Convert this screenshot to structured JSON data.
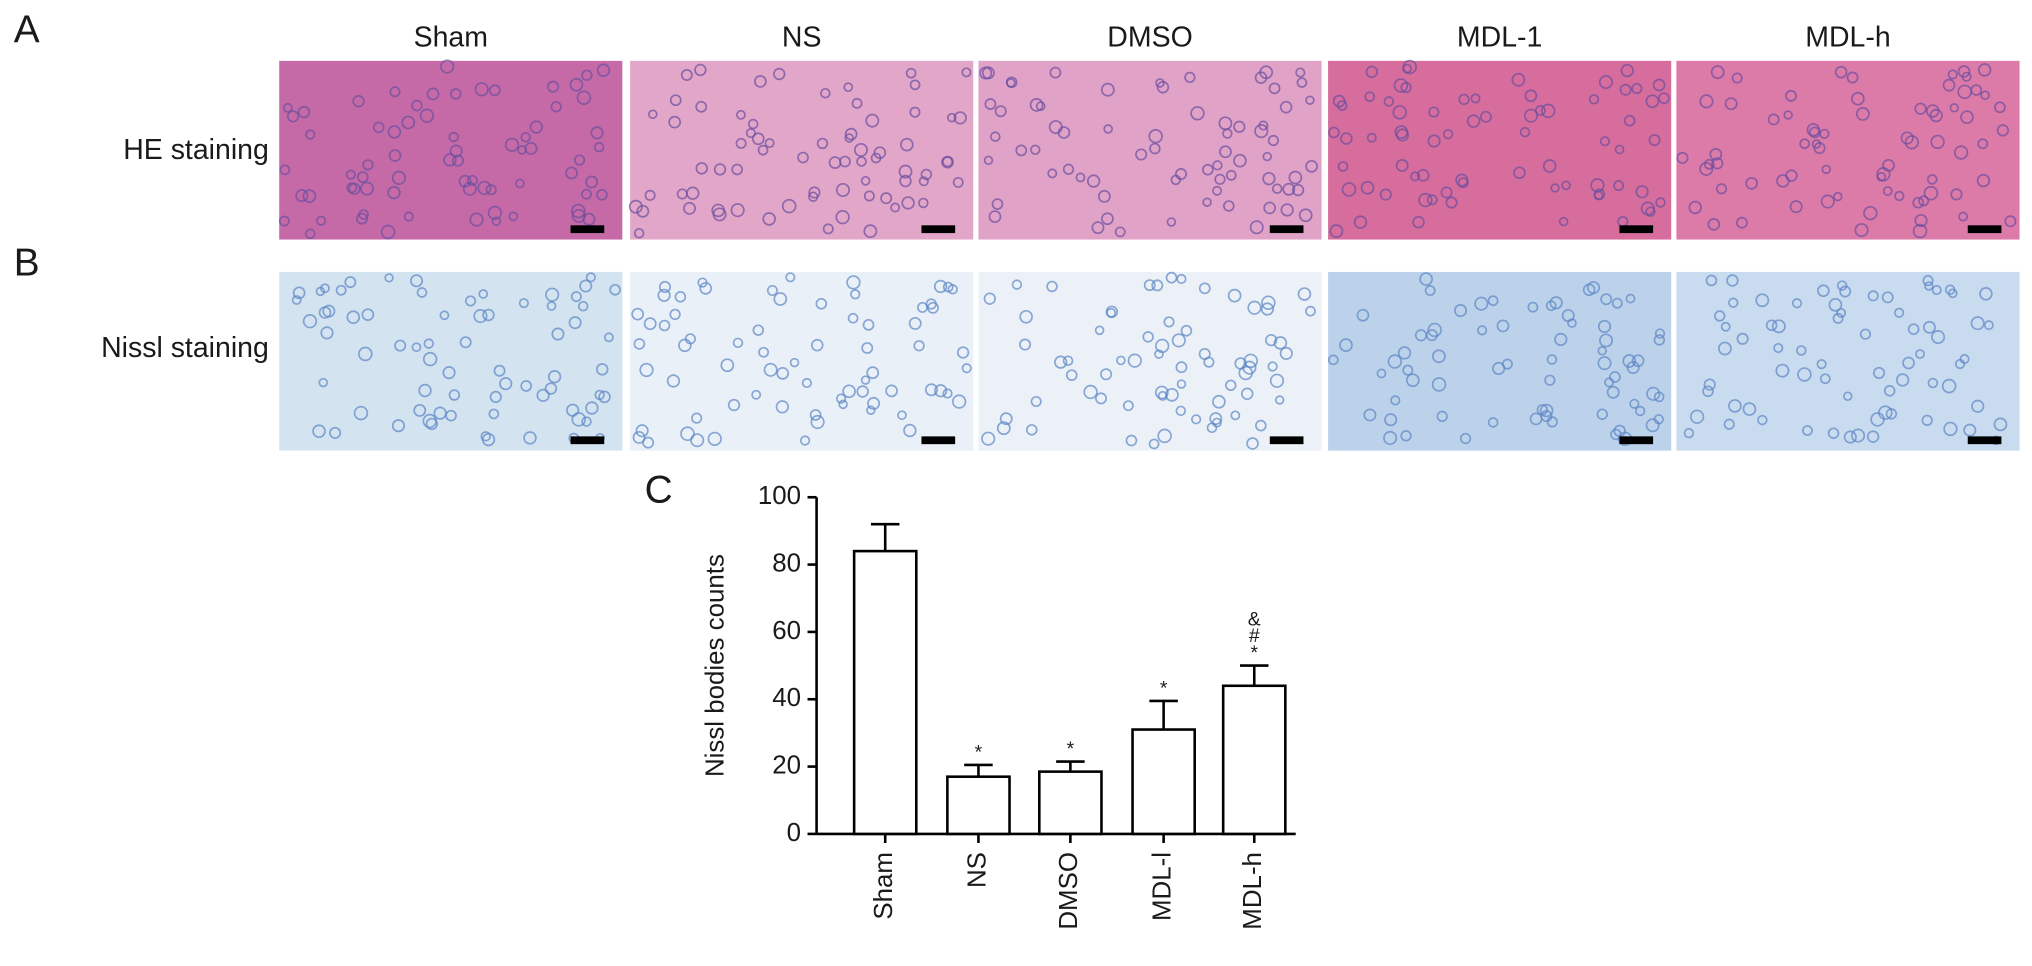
{
  "panels": {
    "labels": [
      "A",
      "B"
    ],
    "columns": [
      "Sham",
      "NS",
      "DMSO",
      "MDL-1",
      "MDL-h"
    ],
    "rows": [
      "HE staining",
      "Nissl staining"
    ]
  },
  "chart_data": {
    "type": "bar",
    "panel_label": "C",
    "y_label": "Nissl bodies counts",
    "categories": [
      "Sham",
      "NS",
      "DMSO",
      "MDL-l",
      "MDL-h"
    ],
    "values": [
      84,
      17,
      18.5,
      31,
      44
    ],
    "errors": [
      8,
      3.5,
      3,
      8.5,
      6
    ],
    "markers": [
      [],
      [
        "*"
      ],
      [
        "*"
      ],
      [
        "*"
      ],
      [
        "*",
        "#",
        "&"
      ]
    ],
    "color": "#ffffff",
    "ylim": [
      0,
      100
    ],
    "yticks": [
      0,
      20,
      40,
      60,
      80,
      100
    ]
  }
}
